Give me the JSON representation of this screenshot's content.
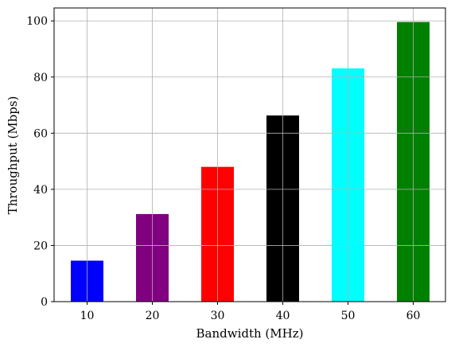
{
  "chart_data": {
    "type": "bar",
    "title": "",
    "xlabel": "Bandwidth (MHz)",
    "ylabel": "Throughput (Mbps)",
    "categories": [
      "10",
      "20",
      "30",
      "40",
      "50",
      "60"
    ],
    "values": [
      14.6,
      31.2,
      48.0,
      66.3,
      83.1,
      99.6
    ],
    "bar_colors": [
      "#0000ff",
      "#800080",
      "#ff0000",
      "#000000",
      "#00ffff",
      "#008000"
    ],
    "ylim": [
      0,
      104.6
    ],
    "yticks": [
      0,
      20,
      40,
      60,
      80,
      100
    ],
    "grid": true,
    "legend": "none"
  }
}
